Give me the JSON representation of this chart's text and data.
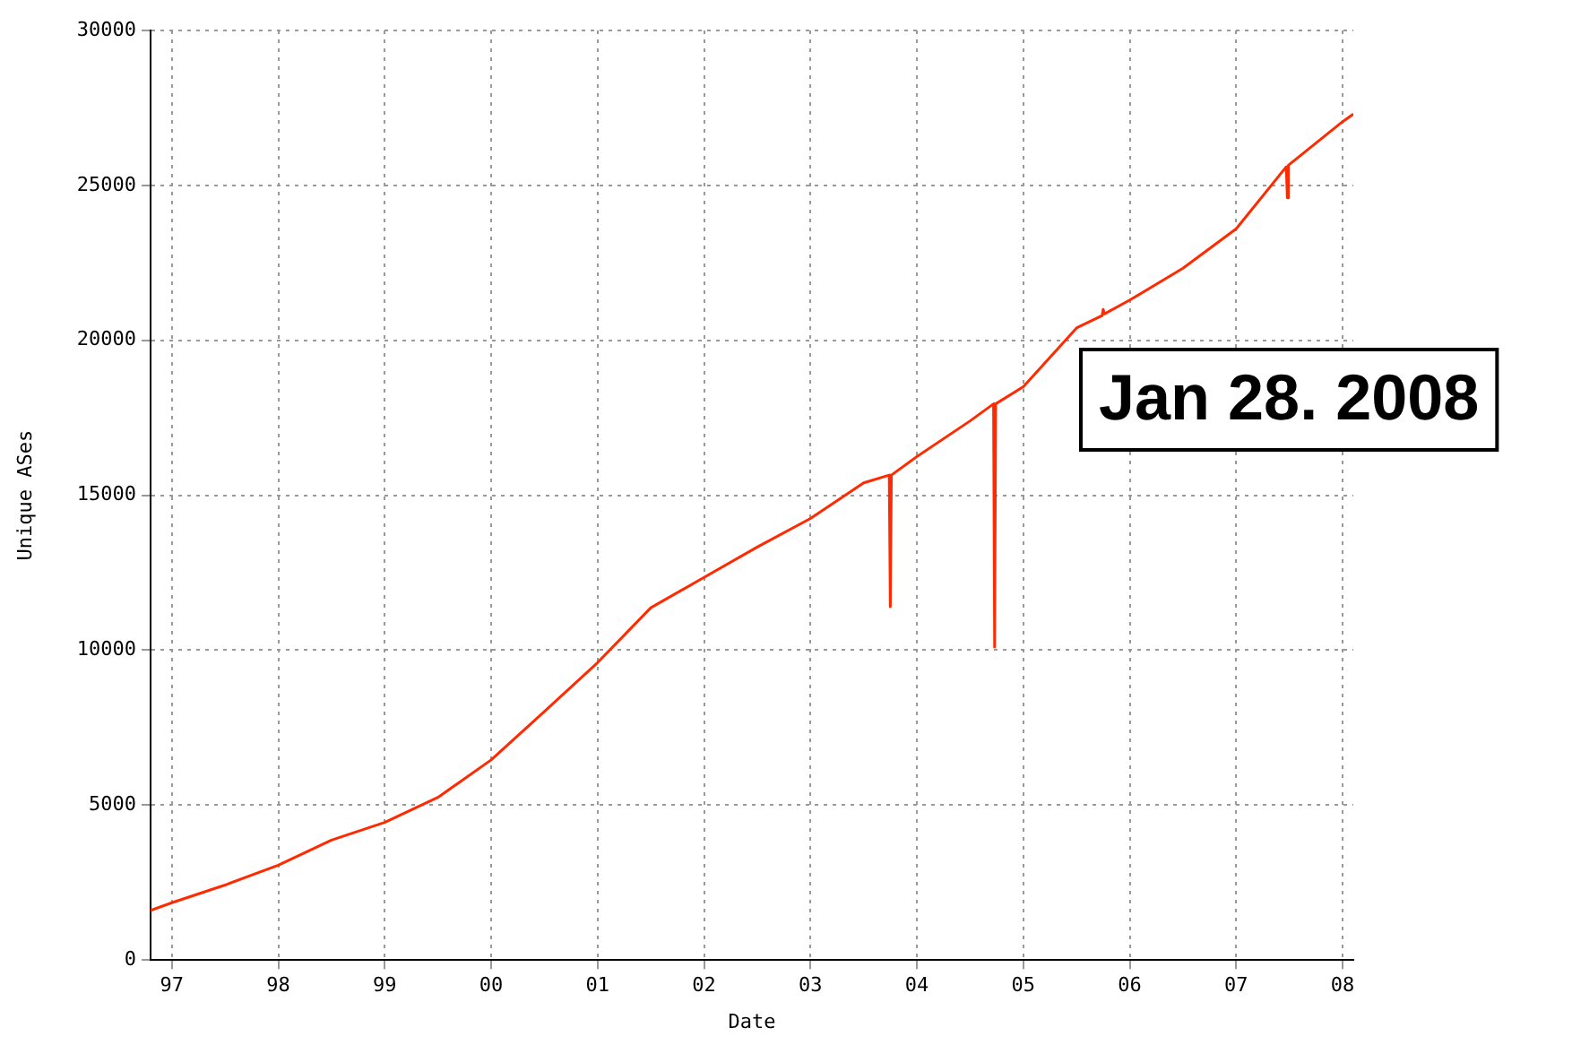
{
  "chart_data": {
    "type": "line",
    "xlabel": "Date",
    "ylabel": "Unique ASes",
    "annotations": [
      "Jan 28. 2008"
    ],
    "x": [
      1996.8,
      1997.0,
      1997.5,
      1998.0,
      1998.5,
      1999.0,
      1999.5,
      2000.0,
      2000.5,
      2001.0,
      2001.5,
      2002.0,
      2002.5,
      2003.0,
      2003.5,
      2003.74,
      2003.75,
      2003.76,
      2004.0,
      2004.5,
      2004.72,
      2004.73,
      2004.74,
      2005.0,
      2005.5,
      2005.74,
      2005.75,
      2005.76,
      2006.0,
      2006.5,
      2007.0,
      2007.47,
      2007.48,
      2007.49,
      2008.0,
      2008.1
    ],
    "series": [
      {
        "color": "#ff2a00",
        "values": [
          1600,
          1850,
          2420,
          3060,
          3870,
          4440,
          5250,
          6460,
          8020,
          9600,
          11370,
          12350,
          13330,
          14250,
          15400,
          15650,
          11400,
          15650,
          16250,
          17400,
          17950,
          10100,
          17950,
          18500,
          20400,
          20800,
          21000,
          20850,
          21300,
          22330,
          23600,
          25600,
          24600,
          25650,
          27060,
          27300
        ]
      }
    ],
    "xlim": [
      1996.8,
      2008.1
    ],
    "xticks": [
      {
        "value": 1997,
        "label": "97"
      },
      {
        "value": 1998,
        "label": "98"
      },
      {
        "value": 1999,
        "label": "99"
      },
      {
        "value": 2000,
        "label": "00"
      },
      {
        "value": 2001,
        "label": "01"
      },
      {
        "value": 2002,
        "label": "02"
      },
      {
        "value": 2003,
        "label": "03"
      },
      {
        "value": 2004,
        "label": "04"
      },
      {
        "value": 2005,
        "label": "05"
      },
      {
        "value": 2006,
        "label": "06"
      },
      {
        "value": 2007,
        "label": "07"
      },
      {
        "value": 2008,
        "label": "08"
      }
    ],
    "ylim": [
      0,
      30000
    ],
    "yticks": [
      0,
      5000,
      10000,
      15000,
      20000,
      25000,
      30000
    ],
    "grid": true,
    "legend": false,
    "marker": "none",
    "line_style": "solid"
  }
}
